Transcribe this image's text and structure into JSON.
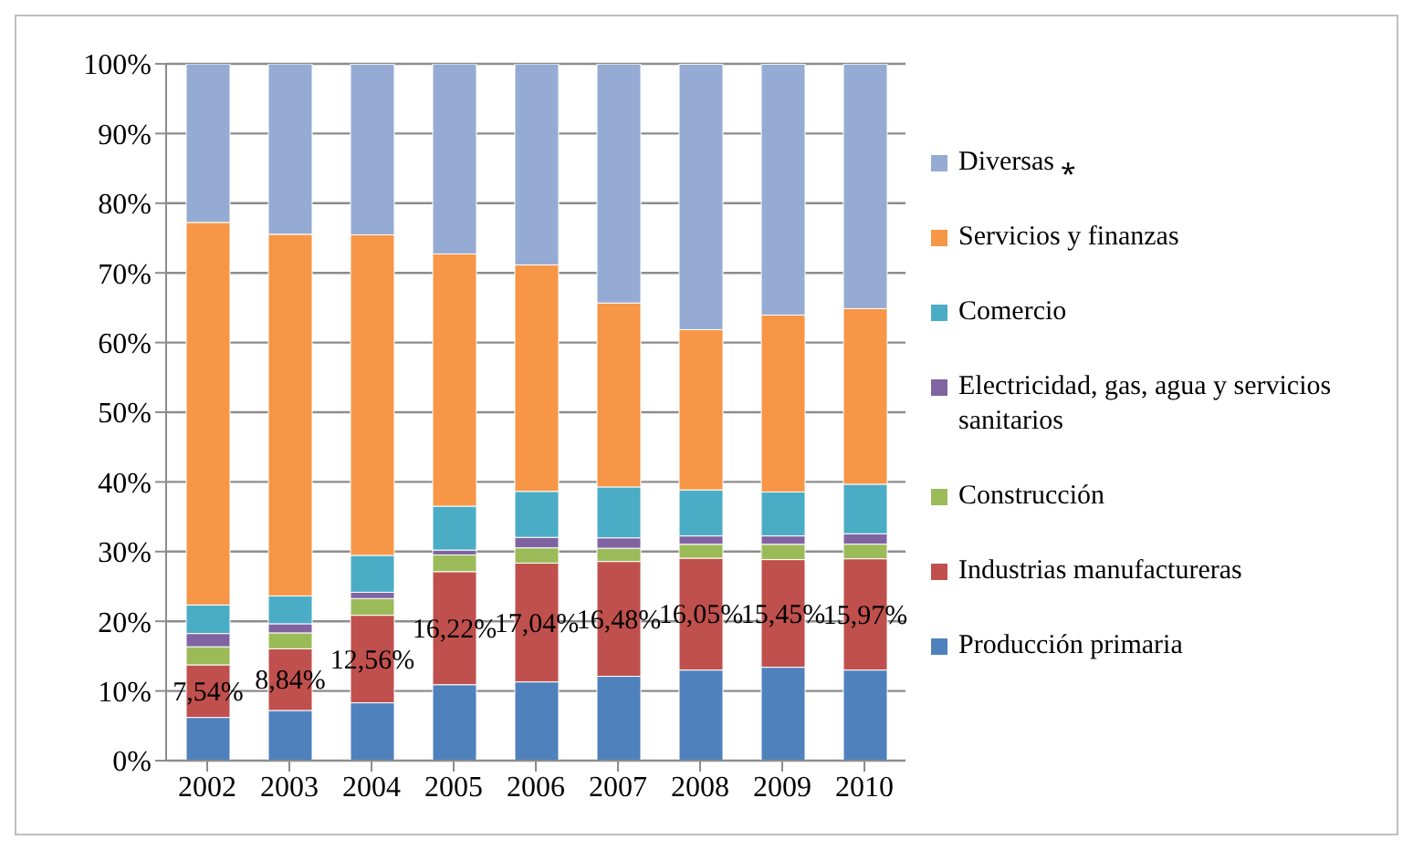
{
  "chart_data": {
    "type": "bar",
    "stacked": true,
    "categories": [
      "2002",
      "2003",
      "2004",
      "2005",
      "2006",
      "2007",
      "2008",
      "2009",
      "2010"
    ],
    "series": [
      {
        "name": "Producción primaria",
        "color": "#4f81bd",
        "values": [
          6.2,
          7.2,
          8.3,
          10.9,
          11.3,
          12.1,
          13.0,
          13.4,
          13.0
        ]
      },
      {
        "name": "Industrias manufactureras",
        "color": "#c0504d",
        "values": [
          7.54,
          8.84,
          12.56,
          16.22,
          17.04,
          16.48,
          16.05,
          15.45,
          15.97
        ],
        "value_labels": [
          "7,54%",
          "8,84%",
          "12,56%",
          "16,22%",
          "17,04%",
          "16,48%",
          "16,05%",
          "15,45%",
          "15,97%"
        ]
      },
      {
        "name": "Construcción",
        "color": "#9bbb59",
        "values": [
          2.6,
          2.3,
          2.4,
          2.4,
          2.2,
          1.9,
          2.0,
          2.2,
          2.1
        ]
      },
      {
        "name": "Electricidad, gas, agua y servicios sanitarios",
        "color": "#8064a2",
        "values": [
          1.9,
          1.3,
          0.9,
          0.7,
          1.5,
          1.5,
          1.2,
          1.2,
          1.5
        ]
      },
      {
        "name": "Comercio",
        "color": "#4bacc6",
        "values": [
          4.1,
          4.0,
          5.3,
          6.3,
          6.6,
          7.3,
          6.6,
          6.3,
          7.1
        ]
      },
      {
        "name": "Servicios y finanzas",
        "color": "#f79646",
        "values": [
          54.9,
          51.9,
          46.0,
          36.2,
          32.5,
          26.4,
          23.0,
          25.4,
          25.2
        ]
      },
      {
        "name": "Diversas ⁎",
        "color": "#95abd3",
        "values": [
          22.8,
          24.5,
          24.5,
          27.3,
          28.9,
          34.3,
          38.1,
          36.0,
          35.1
        ]
      }
    ],
    "ylim": [
      0,
      100
    ],
    "yticks": [
      {
        "value": 0,
        "label": "0%"
      },
      {
        "value": 10,
        "label": "10%"
      },
      {
        "value": 20,
        "label": "20%"
      },
      {
        "value": 30,
        "label": "30%"
      },
      {
        "value": 40,
        "label": "40%"
      },
      {
        "value": 50,
        "label": "50%"
      },
      {
        "value": 60,
        "label": "60%"
      },
      {
        "value": 70,
        "label": "70%"
      },
      {
        "value": 80,
        "label": "80%"
      },
      {
        "value": 90,
        "label": "90%"
      },
      {
        "value": 100,
        "label": "100%"
      }
    ],
    "grid": "y",
    "legend": "right"
  }
}
